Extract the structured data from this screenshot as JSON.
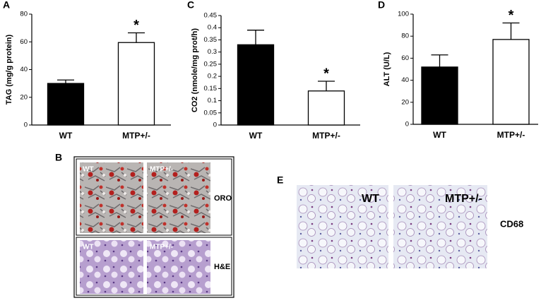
{
  "chart_data": [
    {
      "type": "bar",
      "panel_label": "A",
      "y_label": "TAG (mg/g protein)",
      "categories": [
        "WT",
        "MTP+/-"
      ],
      "values": [
        30,
        59.5
      ],
      "errors": [
        2.5,
        7
      ],
      "colors": [
        "#000000",
        "#ffffff"
      ],
      "ylim": [
        0,
        80
      ],
      "yticks": [
        0,
        20,
        40,
        60,
        80
      ],
      "annotations": [
        {
          "text": "*",
          "x": "MTP+/-"
        }
      ]
    },
    {
      "type": "bar",
      "panel_label": "C",
      "y_label": "CO2 (nmole/mg prot/h)",
      "categories": [
        "WT",
        "MTP+/-"
      ],
      "values": [
        0.33,
        0.14
      ],
      "errors": [
        0.06,
        0.04
      ],
      "colors": [
        "#000000",
        "#ffffff"
      ],
      "ylim": [
        0,
        0.45
      ],
      "yticks": [
        0,
        0.05,
        0.1,
        0.15,
        0.2,
        0.25,
        0.3,
        0.35,
        0.4,
        0.45
      ],
      "annotations": [
        {
          "text": "*",
          "x": "MTP+/-"
        }
      ]
    },
    {
      "type": "bar",
      "panel_label": "D",
      "y_label": "ALT (U/L)",
      "categories": [
        "WT",
        "MTP+/-"
      ],
      "values": [
        52,
        77
      ],
      "errors": [
        11,
        15
      ],
      "colors": [
        "#000000",
        "#ffffff"
      ],
      "ylim": [
        0,
        100
      ],
      "yticks": [
        0,
        20,
        40,
        60,
        80,
        100
      ],
      "annotations": [
        {
          "text": "*",
          "x": "MTP+/-"
        }
      ]
    }
  ],
  "panel_b": {
    "label": "B",
    "rows": [
      {
        "stain": "ORO",
        "images": [
          "WT",
          "MTP+/-"
        ]
      },
      {
        "stain": "H&E",
        "images": [
          "WT",
          "MTP+/-"
        ]
      }
    ]
  },
  "panel_e": {
    "label": "E",
    "images": [
      "WT",
      "MTP+/-"
    ],
    "stain": "CD68"
  }
}
